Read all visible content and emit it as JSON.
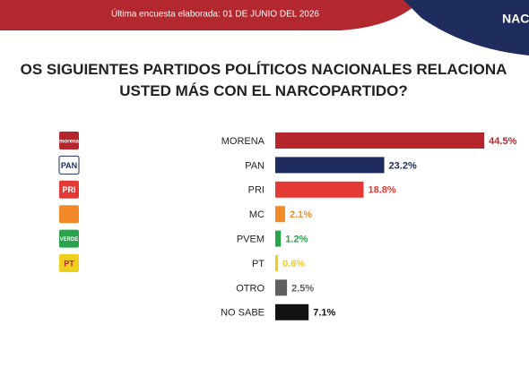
{
  "header": {
    "survey_note": "Última encuesta elaborada: 01 DE JUNIO DEL 2026",
    "brand": "NAC"
  },
  "chart_data": {
    "type": "bar",
    "orientation": "horizontal",
    "title": "OS SIGUIENTES PARTIDOS POLÍTICOS NACIONALES RELACIONA USTED MÁS CON EL NARCOPARTIDO?",
    "categories": [
      "MORENA",
      "PAN",
      "PRI",
      "MC",
      "PVEM",
      "PT",
      "OTRO",
      "NO SABE"
    ],
    "logos": [
      "morena",
      "PAN",
      "PRI",
      null,
      "VERDE",
      "PT",
      null,
      null
    ],
    "values": [
      44.5,
      23.2,
      18.8,
      2.1,
      1.2,
      0.6,
      2.5,
      7.1
    ],
    "value_labels": [
      "44.5%",
      "23.2%",
      "18.8%",
      "2.1%",
      "1.2%",
      "0.6%",
      "2.5%",
      "7.1%"
    ],
    "colors": [
      "#b5262c",
      "#1e2b5e",
      "#e43a36",
      "#f28a2a",
      "#2aa44c",
      "#efcf1d",
      "#5f5f5f",
      "#111111"
    ],
    "xlim": [
      0,
      50
    ]
  }
}
